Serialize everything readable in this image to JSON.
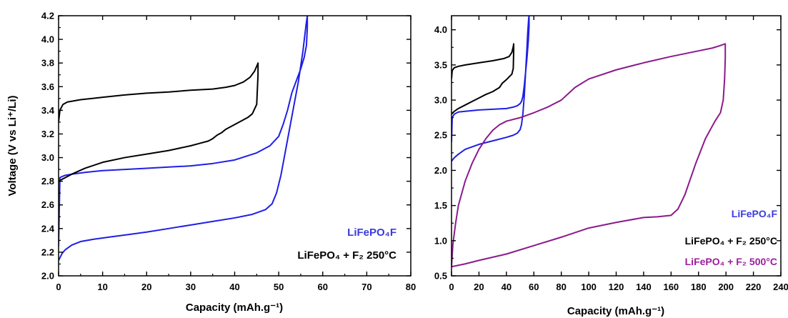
{
  "chart_data": [
    {
      "type": "line",
      "xlabel": "Capacity (mAh.g⁻¹)",
      "ylabel": "Voltage (V vs Li⁺/Li)",
      "xlim": [
        0,
        80
      ],
      "ylim": [
        2.0,
        4.2
      ],
      "x_ticks": [
        0,
        10,
        20,
        30,
        40,
        50,
        60,
        70,
        80
      ],
      "y_ticks": [
        2.0,
        2.2,
        2.4,
        2.6,
        2.8,
        3.0,
        3.2,
        3.4,
        3.6,
        3.8,
        4.0,
        4.2
      ],
      "legend": [
        {
          "text": "LiFePO₄F",
          "color": "#3a3ae0"
        },
        {
          "text": "LiFePO₄ + F₂ 250°C",
          "color": "#000000"
        }
      ],
      "series": [
        {
          "color": "#1f1fe6",
          "x": [
            0,
            0.4,
            0.8,
            1.5,
            3,
            5,
            8,
            12,
            16,
            20,
            25,
            30,
            35,
            40,
            44,
            47,
            48.5,
            49.5,
            50.5,
            51.5,
            52.5,
            53.5,
            54.5,
            55.5,
            56.2,
            56.5,
            56.5,
            56.3,
            55.8,
            55,
            54,
            53,
            52,
            51,
            50,
            48,
            45,
            40,
            35,
            30,
            25,
            20,
            15,
            10,
            6,
            3,
            1.5,
            0.8,
            0.3,
            0
          ],
          "y": [
            2.13,
            2.16,
            2.19,
            2.22,
            2.26,
            2.29,
            2.31,
            2.33,
            2.35,
            2.37,
            2.4,
            2.43,
            2.46,
            2.49,
            2.52,
            2.56,
            2.61,
            2.7,
            2.85,
            3.05,
            3.25,
            3.45,
            3.65,
            3.9,
            4.12,
            4.2,
            4.1,
            3.95,
            3.85,
            3.75,
            3.65,
            3.55,
            3.4,
            3.28,
            3.18,
            3.1,
            3.04,
            2.98,
            2.95,
            2.93,
            2.92,
            2.91,
            2.9,
            2.89,
            2.875,
            2.86,
            2.85,
            2.84,
            2.83,
            2.25
          ]
        },
        {
          "color": "#000000",
          "x": [
            0,
            0.3,
            1,
            2,
            5,
            10,
            15,
            20,
            25,
            30,
            35,
            38,
            40,
            42,
            43.5,
            44.5,
            45.2,
            45.3,
            45.3,
            45,
            44,
            43,
            42,
            40,
            38,
            37,
            36,
            35,
            34,
            32,
            30,
            25,
            20,
            15,
            10,
            6,
            3,
            1.5,
            0.7,
            0.3,
            0
          ],
          "y": [
            3.3,
            3.4,
            3.45,
            3.47,
            3.49,
            3.51,
            3.53,
            3.545,
            3.555,
            3.57,
            3.58,
            3.595,
            3.61,
            3.64,
            3.68,
            3.73,
            3.79,
            3.8,
            3.7,
            3.45,
            3.37,
            3.34,
            3.32,
            3.28,
            3.24,
            3.21,
            3.19,
            3.16,
            3.14,
            3.12,
            3.1,
            3.06,
            3.03,
            3.0,
            2.96,
            2.91,
            2.86,
            2.83,
            2.815,
            2.805,
            2.8
          ]
        }
      ]
    },
    {
      "type": "line",
      "xlabel": "Capacity (mAh.g⁻¹)",
      "ylabel": "",
      "xlim": [
        0,
        240
      ],
      "ylim": [
        0.5,
        4.2
      ],
      "x_ticks": [
        0,
        20,
        40,
        60,
        80,
        100,
        120,
        140,
        160,
        180,
        200,
        220,
        240
      ],
      "y_ticks": [
        0.5,
        1.0,
        1.5,
        2.0,
        2.5,
        3.0,
        3.5,
        4.0
      ],
      "legend": [
        {
          "text": "LiFePO₄F",
          "color": "#3a3ae0"
        },
        {
          "text": "LiFePO₄ + F₂ 250°C",
          "color": "#000000"
        },
        {
          "text": "LiFePO₄ + F₂ 500°C",
          "color": "#9b1e9b"
        }
      ],
      "series": [
        {
          "color": "#1f1fe6",
          "x": [
            0,
            2,
            5,
            10,
            20,
            30,
            40,
            45,
            48,
            50,
            51,
            52,
            53,
            54,
            55,
            55.5,
            56.2,
            56.5,
            56.5,
            56,
            55,
            54,
            53,
            52,
            51,
            50,
            48,
            45,
            40,
            30,
            20,
            10,
            5,
            2,
            0.5,
            0
          ],
          "y": [
            2.13,
            2.18,
            2.23,
            2.3,
            2.37,
            2.42,
            2.47,
            2.5,
            2.53,
            2.58,
            2.65,
            2.8,
            3.05,
            3.4,
            3.75,
            3.95,
            4.15,
            4.2,
            4.05,
            3.85,
            3.6,
            3.4,
            3.2,
            3.05,
            2.98,
            2.95,
            2.92,
            2.9,
            2.88,
            2.87,
            2.86,
            2.84,
            2.83,
            2.8,
            2.75,
            2.4
          ]
        },
        {
          "color": "#000000",
          "x": [
            0,
            0.5,
            2,
            5,
            10,
            20,
            30,
            38,
            42,
            44,
            45,
            45.3,
            45.3,
            45,
            44,
            42,
            40,
            37,
            35,
            30,
            25,
            20,
            15,
            10,
            5,
            2,
            0.5,
            0
          ],
          "y": [
            3.3,
            3.42,
            3.46,
            3.48,
            3.5,
            3.53,
            3.56,
            3.59,
            3.62,
            3.68,
            3.76,
            3.8,
            3.7,
            3.45,
            3.37,
            3.33,
            3.29,
            3.24,
            3.18,
            3.12,
            3.08,
            3.03,
            2.98,
            2.93,
            2.88,
            2.84,
            2.81,
            2.8
          ]
        },
        {
          "color": "#8b1a8b",
          "x": [
            0,
            1,
            3,
            5,
            10,
            15,
            20,
            25,
            30,
            35,
            40,
            50,
            60,
            70,
            80,
            90,
            100,
            120,
            140,
            160,
            180,
            190,
            195,
            198,
            199.5,
            199.5,
            199,
            198,
            196,
            192,
            185,
            178,
            170,
            165,
            160,
            150,
            140,
            120,
            100,
            80,
            60,
            40,
            20,
            10,
            5,
            0
          ],
          "y": [
            0.63,
            0.95,
            1.25,
            1.5,
            1.85,
            2.1,
            2.3,
            2.45,
            2.57,
            2.65,
            2.7,
            2.75,
            2.82,
            2.9,
            3.0,
            3.18,
            3.3,
            3.43,
            3.53,
            3.62,
            3.7,
            3.74,
            3.77,
            3.79,
            3.8,
            3.6,
            3.3,
            3.0,
            2.82,
            2.7,
            2.45,
            2.1,
            1.65,
            1.45,
            1.36,
            1.34,
            1.33,
            1.26,
            1.18,
            1.05,
            0.93,
            0.81,
            0.72,
            0.67,
            0.65,
            0.63
          ]
        }
      ]
    }
  ]
}
